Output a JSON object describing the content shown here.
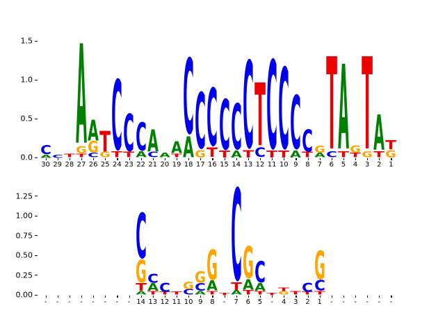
{
  "figure": {
    "background": "#ffffff",
    "letter_colors": {
      "A": "#008000",
      "C": "#0000ee",
      "G": "#ffa500",
      "T": "#ee0000"
    },
    "alphabet": [
      "A",
      "C",
      "G",
      "T"
    ]
  },
  "chart_data": [
    {
      "type": "sequence_logo",
      "panel": "top",
      "title": "",
      "xlabel": "",
      "ylabel": "",
      "ylim": [
        0,
        1.58
      ],
      "grid": false,
      "ytick_labels": [
        "0.0",
        "0.5",
        "1.0",
        "1.5"
      ],
      "positions": [
        "30",
        "29",
        "28",
        "27",
        "26",
        "25",
        "24",
        "23",
        "22",
        "21",
        "20",
        "19",
        "18",
        "17",
        "16",
        "15",
        "14",
        "13",
        "12",
        "11",
        "10",
        "9",
        "8",
        "7",
        "6",
        "5",
        "4",
        "3",
        "2",
        "1"
      ],
      "stacks": [
        [
          [
            "A",
            0.04
          ],
          [
            "C",
            0.12
          ]
        ],
        [
          [
            "C",
            0.04
          ]
        ],
        [
          [
            "T",
            0.05
          ]
        ],
        [
          [
            "T",
            0.05
          ],
          [
            "G",
            0.1
          ],
          [
            "A",
            1.35
          ]
        ],
        [
          [
            "C",
            0.06
          ],
          [
            "G",
            0.15
          ],
          [
            "A",
            0.28
          ]
        ],
        [
          [
            "G",
            0.07
          ],
          [
            "T",
            0.28
          ]
        ],
        [
          [
            "T",
            0.08
          ],
          [
            "C",
            0.95
          ]
        ],
        [
          [
            "T",
            0.07
          ],
          [
            "C",
            0.5
          ]
        ],
        [
          [
            "A",
            0.08
          ],
          [
            "C",
            0.38
          ]
        ],
        [
          [
            "C",
            0.07
          ],
          [
            "A",
            0.3
          ]
        ],
        [
          [
            "A",
            0.06
          ]
        ],
        [
          [
            "T",
            0.05
          ],
          [
            "A",
            0.16
          ]
        ],
        [
          [
            "A",
            0.28
          ],
          [
            "C",
            1.02
          ]
        ],
        [
          [
            "G",
            0.1
          ],
          [
            "C",
            0.76
          ]
        ],
        [
          [
            "T",
            0.13
          ],
          [
            "C",
            0.78
          ]
        ],
        [
          [
            "T",
            0.09
          ],
          [
            "C",
            0.68
          ]
        ],
        [
          [
            "A",
            0.09
          ],
          [
            "C",
            0.62
          ]
        ],
        [
          [
            "T",
            0.1
          ],
          [
            "C",
            1.18
          ]
        ],
        [
          [
            "C",
            0.13
          ],
          [
            "T",
            0.85
          ]
        ],
        [
          [
            "T",
            0.09
          ],
          [
            "C",
            1.2
          ]
        ],
        [
          [
            "T",
            0.09
          ],
          [
            "C",
            1.1
          ]
        ],
        [
          [
            "A",
            0.09
          ],
          [
            "C",
            0.72
          ]
        ],
        [
          [
            "T",
            0.07
          ],
          [
            "C",
            0.3
          ]
        ],
        [
          [
            "A",
            0.06
          ],
          [
            "G",
            0.09
          ]
        ],
        [
          [
            "C",
            0.08
          ],
          [
            "T",
            1.25
          ]
        ],
        [
          [
            "T",
            0.08
          ],
          [
            "A",
            1.15
          ]
        ],
        [
          [
            "T",
            0.06
          ],
          [
            "G",
            0.1
          ]
        ],
        [
          [
            "G",
            0.08
          ],
          [
            "T",
            1.25
          ]
        ],
        [
          [
            "T",
            0.08
          ],
          [
            "A",
            0.48
          ]
        ],
        [
          [
            "G",
            0.1
          ],
          [
            "T",
            0.12
          ]
        ]
      ]
    },
    {
      "type": "sequence_logo",
      "panel": "bottom",
      "title": "",
      "xlabel": "",
      "ylabel": "",
      "ylim": [
        0,
        1.45
      ],
      "grid": false,
      "ytick_labels": [
        "0.00",
        "0.25",
        "0.50",
        "0.75",
        "1.00",
        "1.25"
      ],
      "positions": [
        "-",
        "-",
        "-",
        "-",
        "-",
        "-",
        "-",
        "-",
        "14",
        "13",
        "12",
        "11",
        "10",
        "9",
        "8",
        "-",
        "7",
        "6",
        "5",
        "-",
        "4",
        "3",
        "2",
        "1",
        "-",
        "-",
        "-",
        "-",
        "-",
        "-"
      ],
      "stacks": [
        [],
        [],
        [],
        [],
        [],
        [],
        [],
        [],
        [
          [
            "A",
            0.05
          ],
          [
            "T",
            0.1
          ],
          [
            "G",
            0.3
          ],
          [
            "C",
            0.6
          ]
        ],
        [
          [
            "T",
            0.05
          ],
          [
            "A",
            0.1
          ],
          [
            "C",
            0.12
          ]
        ],
        [
          [
            "T",
            0.04
          ],
          [
            "C",
            0.12
          ]
        ],
        [
          [
            "T",
            0.04
          ]
        ],
        [
          [
            "C",
            0.07
          ],
          [
            "G",
            0.1
          ]
        ],
        [
          [
            "A",
            0.05
          ],
          [
            "C",
            0.1
          ],
          [
            "G",
            0.15
          ]
        ],
        [
          [
            "T",
            0.05
          ],
          [
            "A",
            0.13
          ],
          [
            "G",
            0.4
          ]
        ],
        [
          [
            "T",
            0.03
          ]
        ],
        [
          [
            "A",
            0.06
          ],
          [
            "T",
            0.1
          ],
          [
            "C",
            1.22
          ]
        ],
        [
          [
            "T",
            0.06
          ],
          [
            "A",
            0.14
          ],
          [
            "G",
            0.42
          ]
        ],
        [
          [
            "T",
            0.05
          ],
          [
            "A",
            0.1
          ],
          [
            "C",
            0.28
          ]
        ],
        [
          [
            "T",
            0.03
          ]
        ],
        [
          [
            "G",
            0.05
          ],
          [
            "T",
            0.05
          ]
        ],
        [
          [
            "T",
            0.05
          ]
        ],
        [
          [
            "T",
            0.04
          ],
          [
            "C",
            0.12
          ]
        ],
        [
          [
            "T",
            0.05
          ],
          [
            "C",
            0.14
          ],
          [
            "G",
            0.38
          ]
        ],
        [],
        [],
        [],
        [],
        [],
        []
      ]
    }
  ]
}
